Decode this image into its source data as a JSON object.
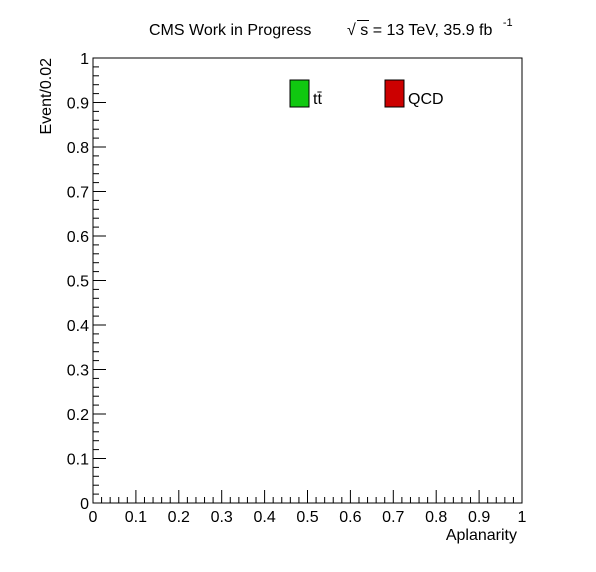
{
  "chart_data": {
    "type": "bar",
    "title": {
      "prefix": "CMS Work in Progress",
      "sqrt_symbol": "√",
      "sqrt_var": "s",
      "rest": " = 13 TeV, 35.9 fb",
      "superscript": "-1"
    },
    "xlabel": "Aplanarity",
    "ylabel": "Event/0.02",
    "xlim": [
      0,
      1
    ],
    "ylim": [
      0,
      1
    ],
    "x_ticks": [
      "0",
      "0.1",
      "0.2",
      "0.3",
      "0.4",
      "0.5",
      "0.6",
      "0.7",
      "0.8",
      "0.9",
      "1"
    ],
    "y_ticks": [
      "0",
      "0.1",
      "0.2",
      "0.3",
      "0.4",
      "0.5",
      "0.6",
      "0.7",
      "0.8",
      "0.9",
      "1"
    ],
    "grid": false,
    "legend_placement": "top",
    "series": [
      {
        "name": "tt̄",
        "color": "#10c810",
        "values": []
      },
      {
        "name": "QCD",
        "color": "#cc0000",
        "values": []
      }
    ]
  }
}
